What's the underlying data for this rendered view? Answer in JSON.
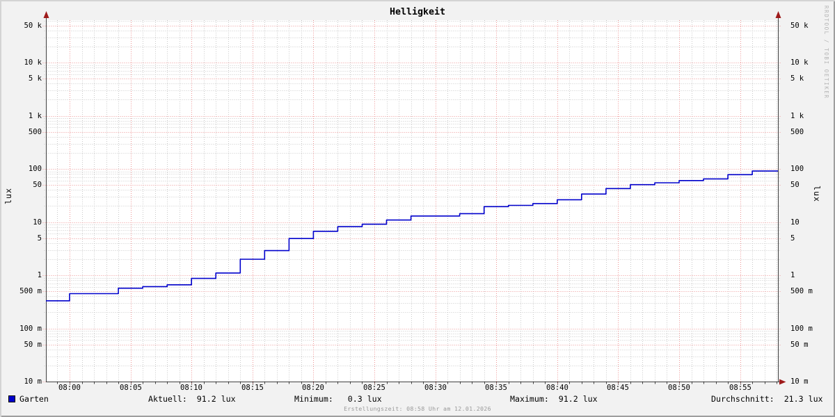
{
  "title": "Helligkeit",
  "watermark": "RRDTOOL / TOBI OETIKER",
  "footer": "Erstellungszeit: 08:58 Uhr am 12.01.2026",
  "legend": {
    "series_label": "Garten",
    "series_color": "#0000cc"
  },
  "stats_display": {
    "aktuell": "Aktuell:  91.2 lux",
    "minimum": "Minimum:   0.3 lux",
    "maximum": "Maximum:  91.2 lux",
    "durchschnitt": "Durchschnitt:  21.3 lux"
  },
  "y_axis": {
    "unit_label": "lux",
    "ticks": [
      {
        "value": 50000,
        "label": "50 k"
      },
      {
        "value": 10000,
        "label": "10 k"
      },
      {
        "value": 5000,
        "label": "5 k"
      },
      {
        "value": 1000,
        "label": "1 k"
      },
      {
        "value": 500,
        "label": "500"
      },
      {
        "value": 100,
        "label": "100"
      },
      {
        "value": 50,
        "label": "50"
      },
      {
        "value": 10,
        "label": "10"
      },
      {
        "value": 5,
        "label": "5"
      },
      {
        "value": 1,
        "label": "1"
      },
      {
        "value": 0.5,
        "label": "500 m"
      },
      {
        "value": 0.1,
        "label": "100 m"
      },
      {
        "value": 0.05,
        "label": "50 m"
      },
      {
        "value": 0.01,
        "label": "10 m"
      }
    ]
  },
  "x_axis": {
    "ticks": [
      "08:00",
      "08:05",
      "08:10",
      "08:15",
      "08:20",
      "08:25",
      "08:30",
      "08:35",
      "08:40",
      "08:45",
      "08:50",
      "08:55"
    ]
  },
  "colors": {
    "background": "#f2f2f2",
    "plot_background": "#ffffff",
    "grid_minor": "#c9c9c9",
    "grid_major": "#ee9494",
    "axis": "#404040",
    "arrow": "#9e1a1a",
    "line": "#0000cc",
    "footer_text": "#9a9a9a",
    "watermark_text": "#b4b4b4"
  },
  "chart_data": {
    "type": "line",
    "line_style": "step-after",
    "y_scale": "log",
    "title": "Helligkeit",
    "ylabel": "lux",
    "ylim": [
      0.01,
      62000
    ],
    "x_range": [
      "07:58",
      "08:58"
    ],
    "x_tick_interval_minutes": 5,
    "grid": true,
    "legend_position": "bottom-left",
    "series": [
      {
        "name": "Garten",
        "color": "#0000cc",
        "points": [
          [
            "07:58",
            0.33
          ],
          [
            "08:00",
            0.45
          ],
          [
            "08:04",
            0.57
          ],
          [
            "08:06",
            0.61
          ],
          [
            "08:08",
            0.66
          ],
          [
            "08:10",
            0.87
          ],
          [
            "08:12",
            1.1
          ],
          [
            "08:14",
            2.0
          ],
          [
            "08:16",
            2.9
          ],
          [
            "08:18",
            4.9
          ],
          [
            "08:20",
            6.7
          ],
          [
            "08:22",
            8.2
          ],
          [
            "08:24",
            9.1
          ],
          [
            "08:26",
            10.9
          ],
          [
            "08:28",
            13.0
          ],
          [
            "08:32",
            14.4
          ],
          [
            "08:34",
            19.5
          ],
          [
            "08:36",
            20.6
          ],
          [
            "08:38",
            22.3
          ],
          [
            "08:40",
            26.3
          ],
          [
            "08:42",
            33.6
          ],
          [
            "08:44",
            42.7
          ],
          [
            "08:46",
            50.5
          ],
          [
            "08:48",
            54.7
          ],
          [
            "08:50",
            60.4
          ],
          [
            "08:52",
            64.9
          ],
          [
            "08:54",
            77.8
          ],
          [
            "08:56",
            91.2
          ]
        ]
      }
    ],
    "stats": {
      "aktuell": 91.2,
      "minimum": 0.3,
      "maximum": 91.2,
      "durchschnitt": 21.3,
      "unit": "lux"
    }
  }
}
